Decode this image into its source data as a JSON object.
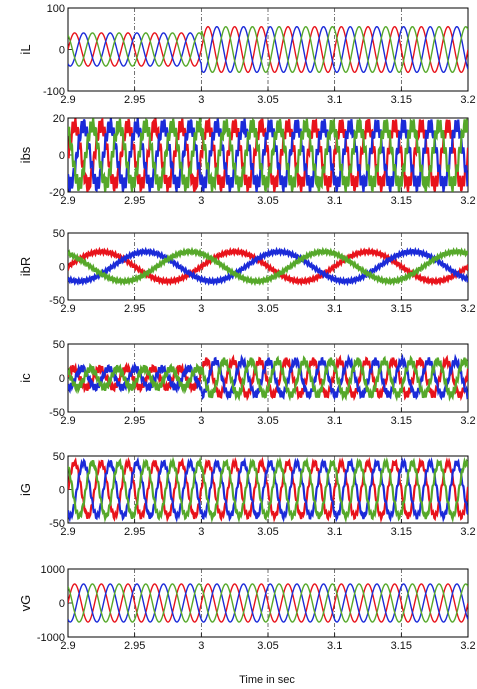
{
  "figure": {
    "xlabel": "Time in sec"
  },
  "colors": {
    "phase_a": "#e8131b",
    "phase_b": "#1b2bd8",
    "phase_c": "#56a82a"
  },
  "chart_data": [
    {
      "type": "line",
      "ylabel": "iL",
      "x_ticks": [
        "2.9",
        "2.95",
        "3",
        "3.05",
        "3.1",
        "3.15",
        "3.2"
      ],
      "xlim": [
        2.9,
        3.2
      ],
      "ylim": [
        -100,
        100
      ],
      "y_ticks": [
        "-100",
        "0",
        "100"
      ],
      "grid": "vertical dash-dot",
      "series": [
        {
          "color": "#e8131b",
          "x": [
            2.9,
            3.0,
            3.0001,
            3.2
          ],
          "y_amplitude": [
            40,
            40,
            55,
            55
          ],
          "frequency_hz": 50,
          "phase_deg": 0
        },
        {
          "color": "#1b2bd8",
          "x": [
            2.9,
            3.0,
            3.0001,
            3.2
          ],
          "y_amplitude": [
            40,
            40,
            55,
            55
          ],
          "frequency_hz": 50,
          "phase_deg": -120
        },
        {
          "color": "#56a82a",
          "x": [
            2.9,
            3.0,
            3.0001,
            3.2
          ],
          "y_amplitude": [
            40,
            40,
            55,
            55
          ],
          "frequency_hz": 50,
          "phase_deg": 120
        }
      ]
    },
    {
      "type": "line",
      "ylabel": "ibs",
      "x_ticks": [
        "2.9",
        "2.95",
        "3",
        "3.05",
        "3.1",
        "3.15",
        "3.2"
      ],
      "xlim": [
        2.9,
        3.2
      ],
      "ylim": [
        -20,
        20
      ],
      "y_ticks": [
        "-20",
        "0",
        "20"
      ],
      "grid": "vertical dash-dot",
      "series": [
        {
          "color": "#e8131b",
          "y_amplitude": 16,
          "frequency_hz": 50,
          "phase_deg": 0,
          "ripple": 4
        },
        {
          "color": "#1b2bd8",
          "y_amplitude": 16,
          "frequency_hz": 50,
          "phase_deg": -120,
          "ripple": 4
        },
        {
          "color": "#56a82a",
          "y_amplitude": 16,
          "frequency_hz": 50,
          "phase_deg": 120,
          "ripple": 4
        }
      ]
    },
    {
      "type": "line",
      "ylabel": "ibR",
      "x_ticks": [
        "2.9",
        "2.95",
        "3",
        "3.05",
        "3.1",
        "3.15",
        "3.2"
      ],
      "xlim": [
        2.9,
        3.2
      ],
      "ylim": [
        -50,
        50
      ],
      "y_ticks": [
        "-50",
        "0",
        "50"
      ],
      "grid": "vertical dash-dot",
      "series": [
        {
          "color": "#e8131b",
          "y_amplitude": 22,
          "frequency_hz": 10,
          "phase_deg": 0,
          "ripple": 3
        },
        {
          "color": "#1b2bd8",
          "y_amplitude": 22,
          "frequency_hz": 10,
          "phase_deg": -120,
          "ripple": 3
        },
        {
          "color": "#56a82a",
          "y_amplitude": 22,
          "frequency_hz": 10,
          "phase_deg": 120,
          "ripple": 3
        }
      ]
    },
    {
      "type": "line",
      "ylabel": "ic",
      "x_ticks": [
        "2.9",
        "2.95",
        "3",
        "3.05",
        "3.1",
        "3.15",
        "3.2"
      ],
      "xlim": [
        2.9,
        3.2
      ],
      "ylim": [
        -50,
        50
      ],
      "y_ticks": [
        "-50",
        "0",
        "50"
      ],
      "grid": "vertical dash-dot",
      "series": [
        {
          "color": "#e8131b",
          "x": [
            2.9,
            3.0,
            3.0001,
            3.2
          ],
          "y_amplitude": [
            14,
            14,
            25,
            25
          ],
          "frequency_hz": 50,
          "phase_deg": 20,
          "ripple": 5
        },
        {
          "color": "#1b2bd8",
          "x": [
            2.9,
            3.0,
            3.0001,
            3.2
          ],
          "y_amplitude": [
            14,
            14,
            25,
            25
          ],
          "frequency_hz": 50,
          "phase_deg": -100,
          "ripple": 5
        },
        {
          "color": "#56a82a",
          "x": [
            2.9,
            3.0,
            3.0001,
            3.2
          ],
          "y_amplitude": [
            14,
            14,
            25,
            25
          ],
          "frequency_hz": 50,
          "phase_deg": 140,
          "ripple": 5
        }
      ]
    },
    {
      "type": "line",
      "ylabel": "iG",
      "x_ticks": [
        "2.9",
        "2.95",
        "3",
        "3.05",
        "3.1",
        "3.15",
        "3.2"
      ],
      "xlim": [
        2.9,
        3.2
      ],
      "ylim": [
        -50,
        50
      ],
      "y_ticks": [
        "-50",
        "0",
        "50"
      ],
      "grid": "vertical dash-dot",
      "series": [
        {
          "color": "#e8131b",
          "y_amplitude": 40,
          "frequency_hz": 50,
          "phase_deg": 0,
          "ripple": 4
        },
        {
          "color": "#1b2bd8",
          "y_amplitude": 40,
          "frequency_hz": 50,
          "phase_deg": -120,
          "ripple": 4
        },
        {
          "color": "#56a82a",
          "y_amplitude": 40,
          "frequency_hz": 50,
          "phase_deg": 120,
          "ripple": 4
        }
      ]
    },
    {
      "type": "line",
      "ylabel": "vG",
      "x_ticks": [
        "2.9",
        "2.95",
        "3",
        "3.05",
        "3.1",
        "3.15",
        "3.2"
      ],
      "xlim": [
        2.9,
        3.2
      ],
      "ylim": [
        -1000,
        1000
      ],
      "y_ticks": [
        "-1000",
        "0",
        "1000"
      ],
      "grid": "vertical dash-dot",
      "series": [
        {
          "color": "#e8131b",
          "y_amplitude": 560,
          "frequency_hz": 50,
          "phase_deg": 0
        },
        {
          "color": "#1b2bd8",
          "y_amplitude": 560,
          "frequency_hz": 50,
          "phase_deg": -120
        },
        {
          "color": "#56a82a",
          "y_amplitude": 560,
          "frequency_hz": 50,
          "phase_deg": 120
        }
      ]
    }
  ]
}
